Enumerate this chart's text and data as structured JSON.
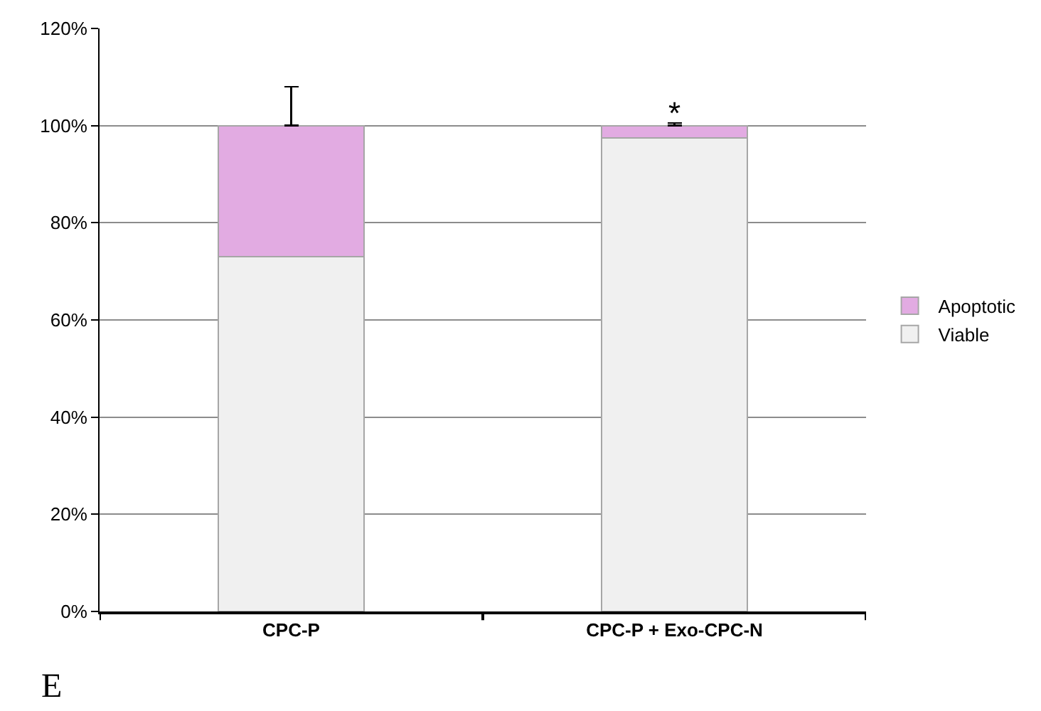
{
  "chart_data": {
    "type": "bar",
    "stacked": true,
    "categories": [
      "CPC-P",
      "CPC-P + Exo-CPC-N"
    ],
    "series": [
      {
        "name": "Viable",
        "color": "#f0f0f0",
        "values": [
          73,
          97.5
        ]
      },
      {
        "name": "Apoptotic",
        "color": "#e2abe2",
        "values": [
          27,
          2.5
        ],
        "errors": [
          [
            100,
            108
          ],
          [
            100,
            100.5
          ]
        ]
      }
    ],
    "ylim": [
      0,
      120
    ],
    "yticks": [
      {
        "value": 0,
        "label": "0%"
      },
      {
        "value": 20,
        "label": "20%"
      },
      {
        "value": 40,
        "label": "40%"
      },
      {
        "value": 60,
        "label": "60%"
      },
      {
        "value": 80,
        "label": "80%"
      },
      {
        "value": 100,
        "label": "100%"
      },
      {
        "value": 120,
        "label": "120%"
      }
    ],
    "grid": "y",
    "legend": "right",
    "annotations": [
      "*",
      "E"
    ]
  }
}
